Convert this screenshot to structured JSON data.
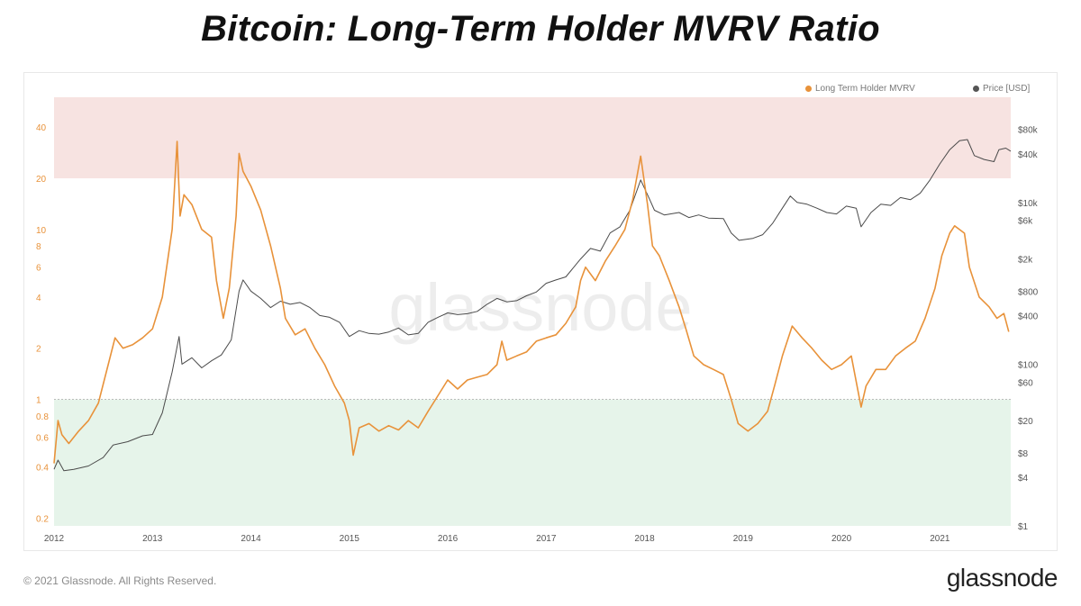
{
  "chart_data": {
    "type": "line",
    "title": "Bitcoin: Long-Term Holder MVRV Ratio",
    "watermark": "glassnode",
    "x_ticks": [
      "2012",
      "2013",
      "2014",
      "2015",
      "2016",
      "2017",
      "2018",
      "2019",
      "2020",
      "2021"
    ],
    "xlim": [
      2012.0,
      2021.72
    ],
    "y_left": {
      "scale": "log",
      "ylim": [
        0.18,
        60
      ],
      "ticks": [
        {
          "v": 0.2,
          "label": "0.2"
        },
        {
          "v": 0.4,
          "label": "0.4"
        },
        {
          "v": 0.6,
          "label": "0.6"
        },
        {
          "v": 0.8,
          "label": "0.8"
        },
        {
          "v": 1,
          "label": "1"
        },
        {
          "v": 2,
          "label": "2"
        },
        {
          "v": 4,
          "label": "4"
        },
        {
          "v": 6,
          "label": "6"
        },
        {
          "v": 8,
          "label": "8"
        },
        {
          "v": 10,
          "label": "10"
        },
        {
          "v": 20,
          "label": "20"
        },
        {
          "v": 40,
          "label": "40"
        }
      ]
    },
    "y_right": {
      "scale": "log",
      "ylim": [
        1,
        200000
      ],
      "ticks": [
        {
          "v": 1,
          "label": "$1"
        },
        {
          "v": 4,
          "label": "$4"
        },
        {
          "v": 8,
          "label": "$8"
        },
        {
          "v": 20,
          "label": "$20"
        },
        {
          "v": 60,
          "label": "$60"
        },
        {
          "v": 100,
          "label": "$100"
        },
        {
          "v": 400,
          "label": "$400"
        },
        {
          "v": 800,
          "label": "$800"
        },
        {
          "v": 2000,
          "label": "$2k"
        },
        {
          "v": 6000,
          "label": "$6k"
        },
        {
          "v": 10000,
          "label": "$10k"
        },
        {
          "v": 40000,
          "label": "$40k"
        },
        {
          "v": 80000,
          "label": "$80k"
        }
      ]
    },
    "bands": [
      {
        "name": "upper",
        "from": 20,
        "to": 60,
        "color": "#f7e3e1"
      },
      {
        "name": "lower",
        "from": 0.18,
        "to": 1,
        "color": "#e6f4ea"
      }
    ],
    "reference_line": {
      "value": 1,
      "color": "#bbbbbb"
    },
    "legend_position": "top-right",
    "series": [
      {
        "name": "Long Term Holder MVRV",
        "axis": "left",
        "color": "#e8923a",
        "points": [
          [
            2012.0,
            0.42
          ],
          [
            2012.04,
            0.75
          ],
          [
            2012.08,
            0.62
          ],
          [
            2012.15,
            0.55
          ],
          [
            2012.25,
            0.65
          ],
          [
            2012.35,
            0.75
          ],
          [
            2012.45,
            0.95
          ],
          [
            2012.55,
            1.6
          ],
          [
            2012.62,
            2.3
          ],
          [
            2012.7,
            2.0
          ],
          [
            2012.8,
            2.1
          ],
          [
            2012.9,
            2.3
          ],
          [
            2013.0,
            2.6
          ],
          [
            2013.1,
            4.0
          ],
          [
            2013.2,
            10.0
          ],
          [
            2013.25,
            33.0
          ],
          [
            2013.28,
            12.0
          ],
          [
            2013.32,
            16.0
          ],
          [
            2013.4,
            14.0
          ],
          [
            2013.5,
            10.0
          ],
          [
            2013.6,
            9.0
          ],
          [
            2013.65,
            5.0
          ],
          [
            2013.72,
            3.0
          ],
          [
            2013.78,
            4.5
          ],
          [
            2013.85,
            12.0
          ],
          [
            2013.88,
            28.0
          ],
          [
            2013.92,
            22.0
          ],
          [
            2014.0,
            18.0
          ],
          [
            2014.1,
            13.0
          ],
          [
            2014.2,
            8.0
          ],
          [
            2014.3,
            4.5
          ],
          [
            2014.35,
            3.0
          ],
          [
            2014.45,
            2.4
          ],
          [
            2014.55,
            2.6
          ],
          [
            2014.65,
            2.0
          ],
          [
            2014.75,
            1.6
          ],
          [
            2014.85,
            1.2
          ],
          [
            2014.95,
            0.95
          ],
          [
            2015.0,
            0.75
          ],
          [
            2015.04,
            0.47
          ],
          [
            2015.1,
            0.68
          ],
          [
            2015.2,
            0.72
          ],
          [
            2015.3,
            0.65
          ],
          [
            2015.4,
            0.7
          ],
          [
            2015.5,
            0.66
          ],
          [
            2015.6,
            0.75
          ],
          [
            2015.7,
            0.68
          ],
          [
            2015.8,
            0.85
          ],
          [
            2015.9,
            1.05
          ],
          [
            2016.0,
            1.3
          ],
          [
            2016.1,
            1.15
          ],
          [
            2016.2,
            1.3
          ],
          [
            2016.3,
            1.35
          ],
          [
            2016.4,
            1.4
          ],
          [
            2016.5,
            1.6
          ],
          [
            2016.55,
            2.2
          ],
          [
            2016.6,
            1.7
          ],
          [
            2016.7,
            1.8
          ],
          [
            2016.8,
            1.9
          ],
          [
            2016.9,
            2.2
          ],
          [
            2017.0,
            2.3
          ],
          [
            2017.1,
            2.4
          ],
          [
            2017.2,
            2.8
          ],
          [
            2017.3,
            3.5
          ],
          [
            2017.35,
            5.0
          ],
          [
            2017.4,
            6.0
          ],
          [
            2017.5,
            5.0
          ],
          [
            2017.6,
            6.5
          ],
          [
            2017.7,
            8.0
          ],
          [
            2017.8,
            10.0
          ],
          [
            2017.88,
            15.0
          ],
          [
            2017.96,
            27.0
          ],
          [
            2018.03,
            14.0
          ],
          [
            2018.08,
            8.0
          ],
          [
            2018.15,
            7.0
          ],
          [
            2018.25,
            5.0
          ],
          [
            2018.35,
            3.5
          ],
          [
            2018.42,
            2.6
          ],
          [
            2018.5,
            1.8
          ],
          [
            2018.6,
            1.6
          ],
          [
            2018.7,
            1.5
          ],
          [
            2018.8,
            1.4
          ],
          [
            2018.88,
            1.0
          ],
          [
            2018.95,
            0.72
          ],
          [
            2019.05,
            0.65
          ],
          [
            2019.15,
            0.72
          ],
          [
            2019.25,
            0.85
          ],
          [
            2019.32,
            1.2
          ],
          [
            2019.4,
            1.8
          ],
          [
            2019.5,
            2.7
          ],
          [
            2019.6,
            2.3
          ],
          [
            2019.7,
            2.0
          ],
          [
            2019.8,
            1.7
          ],
          [
            2019.9,
            1.5
          ],
          [
            2020.0,
            1.6
          ],
          [
            2020.1,
            1.8
          ],
          [
            2020.2,
            0.9
          ],
          [
            2020.25,
            1.2
          ],
          [
            2020.35,
            1.5
          ],
          [
            2020.45,
            1.5
          ],
          [
            2020.55,
            1.8
          ],
          [
            2020.65,
            2.0
          ],
          [
            2020.75,
            2.2
          ],
          [
            2020.85,
            3.0
          ],
          [
            2020.95,
            4.5
          ],
          [
            2021.02,
            7.0
          ],
          [
            2021.1,
            9.5
          ],
          [
            2021.15,
            10.5
          ],
          [
            2021.25,
            9.5
          ],
          [
            2021.3,
            6.0
          ],
          [
            2021.4,
            4.0
          ],
          [
            2021.5,
            3.5
          ],
          [
            2021.58,
            3.0
          ],
          [
            2021.65,
            3.2
          ],
          [
            2021.7,
            2.5
          ]
        ]
      },
      {
        "name": "Price [USD]",
        "axis": "right",
        "color": "#4a4a4a",
        "points": [
          [
            2012.0,
            5.0
          ],
          [
            2012.04,
            6.5
          ],
          [
            2012.1,
            4.8
          ],
          [
            2012.2,
            5.0
          ],
          [
            2012.35,
            5.5
          ],
          [
            2012.5,
            7.0
          ],
          [
            2012.6,
            10.0
          ],
          [
            2012.75,
            11.0
          ],
          [
            2012.9,
            13.0
          ],
          [
            2013.0,
            13.5
          ],
          [
            2013.1,
            25.0
          ],
          [
            2013.2,
            80.0
          ],
          [
            2013.27,
            220.0
          ],
          [
            2013.3,
            100.0
          ],
          [
            2013.4,
            120.0
          ],
          [
            2013.5,
            90.0
          ],
          [
            2013.6,
            110.0
          ],
          [
            2013.7,
            130.0
          ],
          [
            2013.8,
            200.0
          ],
          [
            2013.88,
            800.0
          ],
          [
            2013.92,
            1100.0
          ],
          [
            2014.0,
            800.0
          ],
          [
            2014.1,
            650.0
          ],
          [
            2014.2,
            500.0
          ],
          [
            2014.3,
            600.0
          ],
          [
            2014.4,
            550.0
          ],
          [
            2014.5,
            580.0
          ],
          [
            2014.6,
            500.0
          ],
          [
            2014.7,
            400.0
          ],
          [
            2014.8,
            380.0
          ],
          [
            2014.9,
            330.0
          ],
          [
            2015.0,
            220.0
          ],
          [
            2015.1,
            260.0
          ],
          [
            2015.2,
            240.0
          ],
          [
            2015.3,
            235.0
          ],
          [
            2015.4,
            250.0
          ],
          [
            2015.5,
            280.0
          ],
          [
            2015.6,
            230.0
          ],
          [
            2015.7,
            240.0
          ],
          [
            2015.8,
            330.0
          ],
          [
            2015.9,
            380.0
          ],
          [
            2016.0,
            430.0
          ],
          [
            2016.1,
            410.0
          ],
          [
            2016.2,
            420.0
          ],
          [
            2016.3,
            450.0
          ],
          [
            2016.4,
            550.0
          ],
          [
            2016.5,
            650.0
          ],
          [
            2016.6,
            590.0
          ],
          [
            2016.7,
            610.0
          ],
          [
            2016.8,
            700.0
          ],
          [
            2016.9,
            780.0
          ],
          [
            2017.0,
            1000.0
          ],
          [
            2017.1,
            1100.0
          ],
          [
            2017.2,
            1200.0
          ],
          [
            2017.35,
            2000.0
          ],
          [
            2017.45,
            2700.0
          ],
          [
            2017.55,
            2500.0
          ],
          [
            2017.65,
            4200.0
          ],
          [
            2017.75,
            5000.0
          ],
          [
            2017.85,
            8000.0
          ],
          [
            2017.96,
            19000.0
          ],
          [
            2018.05,
            11000.0
          ],
          [
            2018.1,
            8000.0
          ],
          [
            2018.2,
            7000.0
          ],
          [
            2018.35,
            7500.0
          ],
          [
            2018.45,
            6500.0
          ],
          [
            2018.55,
            7000.0
          ],
          [
            2018.65,
            6400.0
          ],
          [
            2018.8,
            6300.0
          ],
          [
            2018.88,
            4200.0
          ],
          [
            2018.96,
            3400.0
          ],
          [
            2019.1,
            3600.0
          ],
          [
            2019.2,
            4000.0
          ],
          [
            2019.3,
            5500.0
          ],
          [
            2019.4,
            8500.0
          ],
          [
            2019.48,
            12000.0
          ],
          [
            2019.55,
            10000.0
          ],
          [
            2019.65,
            9500.0
          ],
          [
            2019.75,
            8500.0
          ],
          [
            2019.85,
            7500.0
          ],
          [
            2019.95,
            7200.0
          ],
          [
            2020.05,
            9000.0
          ],
          [
            2020.15,
            8500.0
          ],
          [
            2020.2,
            5000.0
          ],
          [
            2020.3,
            7500.0
          ],
          [
            2020.4,
            9500.0
          ],
          [
            2020.5,
            9200.0
          ],
          [
            2020.6,
            11500.0
          ],
          [
            2020.7,
            10800.0
          ],
          [
            2020.8,
            13000.0
          ],
          [
            2020.9,
            19000.0
          ],
          [
            2021.0,
            30000.0
          ],
          [
            2021.1,
            45000.0
          ],
          [
            2021.2,
            58000.0
          ],
          [
            2021.28,
            60000.0
          ],
          [
            2021.35,
            38000.0
          ],
          [
            2021.45,
            34000.0
          ],
          [
            2021.55,
            32000.0
          ],
          [
            2021.6,
            45000.0
          ],
          [
            2021.67,
            47000.0
          ],
          [
            2021.72,
            43000.0
          ]
        ]
      }
    ]
  },
  "footer": {
    "copyright": "© 2021 Glassnode. All Rights Reserved.",
    "brand": "glassnode"
  }
}
